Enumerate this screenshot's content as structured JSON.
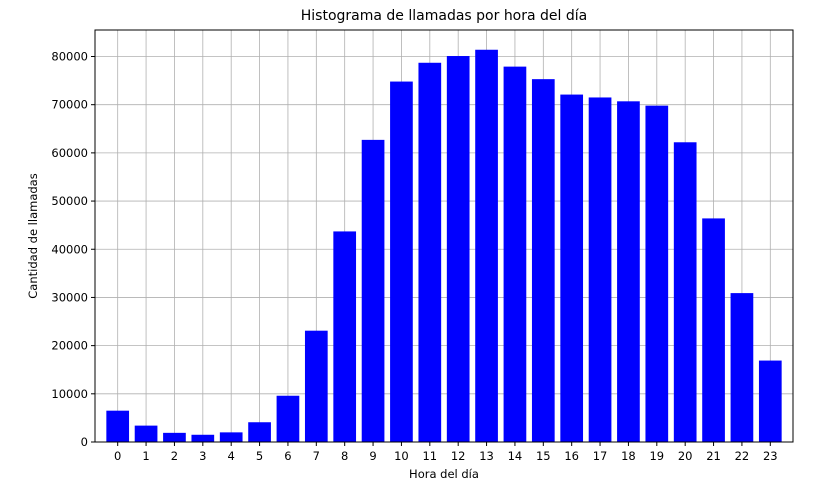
{
  "chart_data": {
    "type": "bar",
    "title": "Histograma de llamadas por hora del día",
    "xlabel": "Hora del día",
    "ylabel": "Cantidad de llamadas",
    "categories": [
      "0",
      "1",
      "2",
      "3",
      "4",
      "5",
      "6",
      "7",
      "8",
      "9",
      "10",
      "11",
      "12",
      "13",
      "14",
      "15",
      "16",
      "17",
      "18",
      "19",
      "20",
      "21",
      "22",
      "23"
    ],
    "values": [
      6500,
      3400,
      1900,
      1500,
      2000,
      4100,
      9600,
      23100,
      43700,
      62700,
      74800,
      78700,
      80100,
      81400,
      77900,
      75300,
      72100,
      71500,
      70700,
      69800,
      62200,
      46400,
      30900,
      16900
    ],
    "yticks": [
      0,
      10000,
      20000,
      30000,
      40000,
      50000,
      60000,
      70000,
      80000
    ],
    "ylim": [
      0,
      85500
    ],
    "grid": true,
    "bar_color": "#0000ff"
  }
}
